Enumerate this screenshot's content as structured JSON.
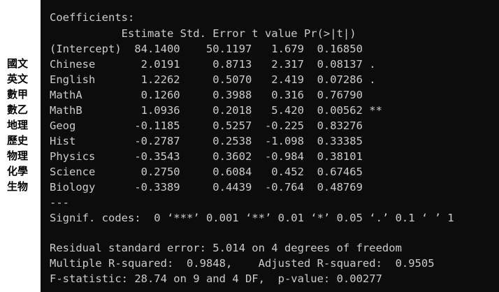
{
  "side_labels": [
    "國文",
    "英文",
    "數甲",
    "數乙",
    "地理",
    "歷史",
    "物理",
    "化學",
    "生物"
  ],
  "output": {
    "heading": "Coefficients:",
    "column_header": "           Estimate Std. Error t value Pr(>|t|)  ",
    "rows": [
      "(Intercept)  84.1400    50.1197   1.679  0.16850  ",
      "Chinese       2.0191     0.8713   2.317  0.08137 .",
      "English       1.2262     0.5070   2.419  0.07286 .",
      "MathA         0.1260     0.3988   0.316  0.76790  ",
      "MathB         1.0936     0.2018   5.420  0.00562 **",
      "Geog         -0.1185     0.5257  -0.225  0.83276  ",
      "Hist         -0.2787     0.2538  -1.098  0.33385  ",
      "Physics      -0.3543     0.3602  -0.984  0.38101  ",
      "Science       0.2750     0.6084   0.452  0.67465  ",
      "Biology      -0.3389     0.4439  -0.764  0.48769  "
    ],
    "separator": "---",
    "signif_codes": "Signif. codes:  0 ‘***’ 0.001 ‘**’ 0.01 ‘*’ 0.05 ‘.’ 0.1 ‘ ’ 1",
    "residual_se": "Residual standard error: 5.014 on 4 degrees of freedom",
    "r_squared": "Multiple R-squared:  0.9848,    Adjusted R-squared:  0.9505",
    "f_statistic": "F-statistic: 28.74 on 9 and 4 DF,  p-value: 0.00277"
  }
}
